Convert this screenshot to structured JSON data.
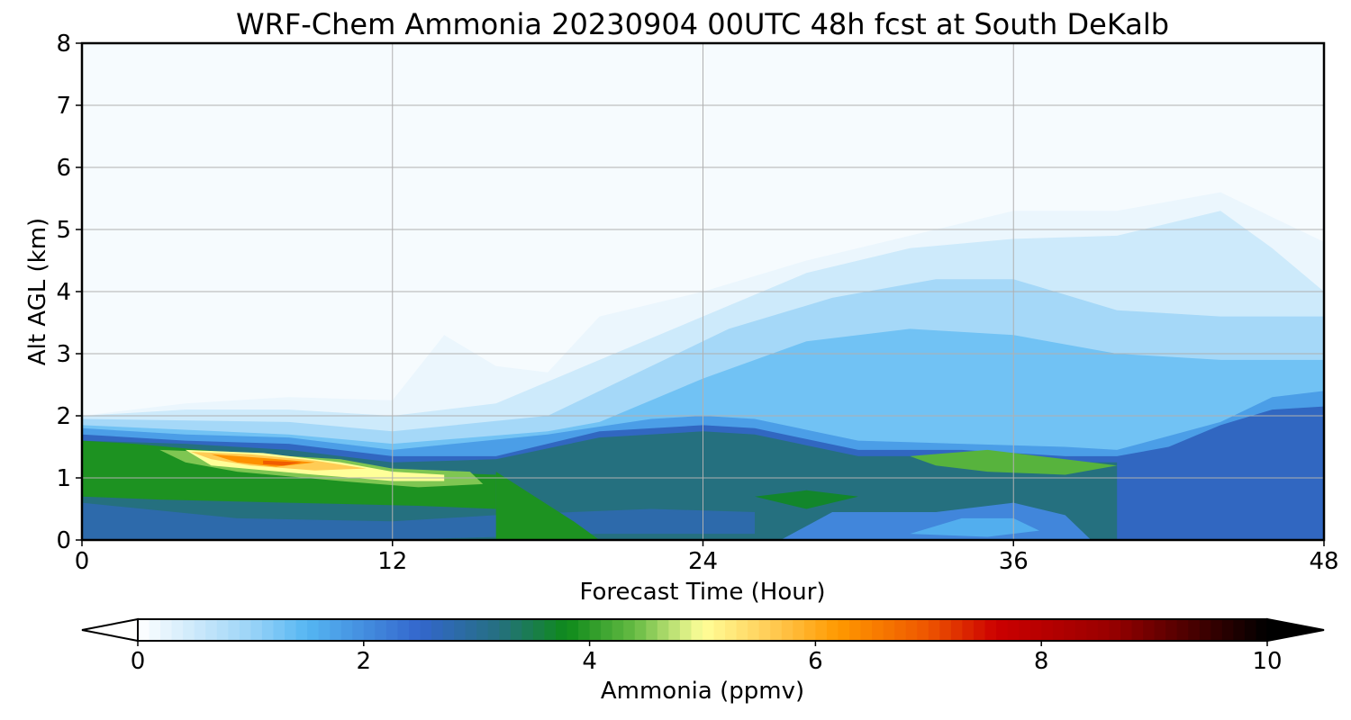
{
  "chart_data": {
    "type": "heatmap",
    "title": "WRF-Chem Ammonia  20230904 00UTC 48h fcst at South DeKalb",
    "xlabel": "Forecast Time (Hour)",
    "ylabel": "Alt AGL (km)",
    "xlim": [
      0,
      48
    ],
    "ylim": [
      0,
      8
    ],
    "x_ticks": [
      "0",
      "12",
      "24",
      "36",
      "48"
    ],
    "y_ticks": [
      "0",
      "1",
      "2",
      "3",
      "4",
      "5",
      "6",
      "7",
      "8"
    ],
    "grid": true,
    "colorbar": {
      "label": "Ammonia  (ppmv)",
      "range": [
        0,
        10
      ],
      "ticks": [
        "0",
        "2",
        "4",
        "6",
        "8",
        "10"
      ],
      "extend": "both",
      "stops": [
        {
          "v": 0,
          "c": "#ffffff"
        },
        {
          "v": 1,
          "c": "#9bd4f7"
        },
        {
          "v": 1.5,
          "c": "#55b6f2"
        },
        {
          "v": 2.5,
          "c": "#3366cc"
        },
        {
          "v": 3.2,
          "c": "#25707f"
        },
        {
          "v": 3.8,
          "c": "#0e8a1a"
        },
        {
          "v": 4.4,
          "c": "#66bb44"
        },
        {
          "v": 5.0,
          "c": "#ffff99"
        },
        {
          "v": 5.6,
          "c": "#ffcc55"
        },
        {
          "v": 6.2,
          "c": "#ff9900"
        },
        {
          "v": 7.0,
          "c": "#ee5500"
        },
        {
          "v": 7.6,
          "c": "#cc0000"
        },
        {
          "v": 8.6,
          "c": "#990000"
        },
        {
          "v": 10,
          "c": "#000000"
        }
      ]
    },
    "contours": [
      {
        "value": 0.2,
        "points": [
          [
            0,
            2.0
          ],
          [
            4,
            2.2
          ],
          [
            8,
            2.3
          ],
          [
            12,
            2.25
          ],
          [
            14,
            3.3
          ],
          [
            16,
            2.8
          ],
          [
            18,
            2.7
          ],
          [
            20,
            3.6
          ],
          [
            24,
            4.0
          ],
          [
            28,
            4.5
          ],
          [
            32,
            4.9
          ],
          [
            36,
            5.3
          ],
          [
            40,
            5.3
          ],
          [
            44,
            5.6
          ],
          [
            46,
            5.2
          ],
          [
            48,
            4.8
          ],
          [
            48,
            0
          ],
          [
            0,
            0
          ]
        ]
      },
      {
        "value": 0.5,
        "points": [
          [
            0,
            2.0
          ],
          [
            4,
            2.1
          ],
          [
            8,
            2.1
          ],
          [
            12,
            2.0
          ],
          [
            16,
            2.2
          ],
          [
            20,
            2.9
          ],
          [
            24,
            3.6
          ],
          [
            28,
            4.3
          ],
          [
            32,
            4.7
          ],
          [
            36,
            4.85
          ],
          [
            40,
            4.9
          ],
          [
            44,
            5.3
          ],
          [
            46,
            4.7
          ],
          [
            48,
            4.0
          ],
          [
            48,
            0
          ],
          [
            0,
            0
          ]
        ]
      },
      {
        "value": 0.9,
        "points": [
          [
            0,
            1.95
          ],
          [
            8,
            1.9
          ],
          [
            12,
            1.75
          ],
          [
            18,
            2.0
          ],
          [
            21,
            2.6
          ],
          [
            25,
            3.4
          ],
          [
            29,
            3.9
          ],
          [
            33,
            4.2
          ],
          [
            36,
            4.2
          ],
          [
            40,
            3.7
          ],
          [
            44,
            3.6
          ],
          [
            48,
            3.6
          ],
          [
            48,
            0
          ],
          [
            0,
            0
          ]
        ]
      },
      {
        "value": 1.3,
        "points": [
          [
            0,
            1.85
          ],
          [
            8,
            1.7
          ],
          [
            12,
            1.55
          ],
          [
            18,
            1.75
          ],
          [
            20,
            1.9
          ],
          [
            24,
            2.6
          ],
          [
            28,
            3.2
          ],
          [
            32,
            3.4
          ],
          [
            36,
            3.3
          ],
          [
            40,
            3.0
          ],
          [
            44,
            2.9
          ],
          [
            48,
            2.9
          ],
          [
            48,
            0
          ],
          [
            0,
            0
          ]
        ]
      },
      {
        "value": 1.8,
        "points": [
          [
            0,
            1.8
          ],
          [
            4,
            1.7
          ],
          [
            8,
            1.65
          ],
          [
            12,
            1.45
          ],
          [
            18,
            1.7
          ],
          [
            22,
            1.95
          ],
          [
            24,
            2.0
          ],
          [
            26,
            1.95
          ],
          [
            30,
            1.6
          ],
          [
            34,
            1.55
          ],
          [
            38,
            1.5
          ],
          [
            40,
            1.45
          ],
          [
            44,
            1.9
          ],
          [
            46,
            2.3
          ],
          [
            48,
            2.4
          ],
          [
            48,
            0
          ],
          [
            0,
            0
          ]
        ]
      },
      {
        "value": 2.6,
        "points": [
          [
            0,
            1.7
          ],
          [
            4,
            1.6
          ],
          [
            8,
            1.55
          ],
          [
            12,
            1.35
          ],
          [
            16,
            1.35
          ],
          [
            20,
            1.75
          ],
          [
            24,
            1.85
          ],
          [
            26,
            1.8
          ],
          [
            30,
            1.45
          ],
          [
            34,
            1.45
          ],
          [
            38,
            1.35
          ],
          [
            40,
            1.35
          ],
          [
            42,
            1.5
          ],
          [
            44,
            1.85
          ],
          [
            46,
            2.1
          ],
          [
            48,
            2.15
          ],
          [
            48,
            0
          ],
          [
            0,
            0
          ]
        ]
      },
      {
        "value": 3.2,
        "points": [
          [
            0,
            1.6
          ],
          [
            4,
            1.55
          ],
          [
            8,
            1.45
          ],
          [
            12,
            1.25
          ],
          [
            16,
            1.3
          ],
          [
            20,
            1.65
          ],
          [
            24,
            1.75
          ],
          [
            26,
            1.7
          ],
          [
            30,
            1.35
          ],
          [
            34,
            1.35
          ],
          [
            38,
            1.25
          ],
          [
            40,
            1.25
          ],
          [
            40,
            0
          ],
          [
            0,
            0
          ]
        ]
      },
      {
        "value": 2.1,
        "points": [
          [
            27,
            0.0
          ],
          [
            29,
            0.45
          ],
          [
            33,
            0.45
          ],
          [
            36,
            0.6
          ],
          [
            38,
            0.4
          ],
          [
            39,
            0.0
          ]
        ]
      },
      {
        "value": 1.6,
        "points": [
          [
            32,
            0.1
          ],
          [
            34,
            0.35
          ],
          [
            36,
            0.35
          ],
          [
            37,
            0.15
          ],
          [
            35,
            0.05
          ]
        ]
      },
      {
        "value": 2.8,
        "points": [
          [
            0,
            0.6
          ],
          [
            6,
            0.35
          ],
          [
            12,
            0.3
          ],
          [
            16,
            0.4
          ],
          [
            22,
            0.5
          ],
          [
            26,
            0.45
          ],
          [
            26,
            0.1
          ],
          [
            20,
            0.1
          ],
          [
            12,
            0.0
          ],
          [
            0,
            0.0
          ]
        ]
      },
      {
        "value": 3.9,
        "points": [
          [
            0,
            1.6
          ],
          [
            2,
            1.55
          ],
          [
            6,
            1.4
          ],
          [
            10,
            1.25
          ],
          [
            13,
            1.1
          ],
          [
            16,
            1.05
          ],
          [
            16,
            0.5
          ],
          [
            13,
            0.55
          ],
          [
            8,
            0.6
          ],
          [
            3,
            0.65
          ],
          [
            0,
            0.7
          ]
        ]
      },
      {
        "value": 3.9,
        "points": [
          [
            16,
            0.0
          ],
          [
            16,
            1.1
          ],
          [
            19,
            0.3
          ],
          [
            20,
            0.0
          ]
        ]
      },
      {
        "value": 3.7,
        "points": [
          [
            26,
            0.7
          ],
          [
            28,
            0.8
          ],
          [
            30,
            0.7
          ],
          [
            28,
            0.5
          ]
        ]
      },
      {
        "value": 4.3,
        "points": [
          [
            32,
            1.35
          ],
          [
            35,
            1.45
          ],
          [
            38,
            1.3
          ],
          [
            40,
            1.2
          ],
          [
            38,
            1.05
          ],
          [
            35,
            1.1
          ],
          [
            33,
            1.2
          ]
        ]
      },
      {
        "value": 4.5,
        "points": [
          [
            3,
            1.45
          ],
          [
            6,
            1.4
          ],
          [
            10,
            1.3
          ],
          [
            12,
            1.15
          ],
          [
            15,
            1.1
          ],
          [
            15.5,
            0.9
          ],
          [
            13,
            0.85
          ],
          [
            10,
            0.95
          ],
          [
            6,
            1.1
          ],
          [
            4,
            1.25
          ]
        ]
      },
      {
        "value": 5.0,
        "points": [
          [
            4,
            1.45
          ],
          [
            7,
            1.4
          ],
          [
            10,
            1.25
          ],
          [
            12,
            1.1
          ],
          [
            14,
            1.05
          ],
          [
            14,
            0.95
          ],
          [
            12,
            0.95
          ],
          [
            9,
            1.05
          ],
          [
            5,
            1.2
          ]
        ]
      },
      {
        "value": 5.6,
        "points": [
          [
            4.2,
            1.42
          ],
          [
            6.5,
            1.38
          ],
          [
            9,
            1.28
          ],
          [
            11,
            1.15
          ],
          [
            9,
            1.12
          ],
          [
            6.5,
            1.2
          ],
          [
            5,
            1.3
          ]
        ]
      },
      {
        "value": 6.3,
        "points": [
          [
            5,
            1.38
          ],
          [
            7,
            1.32
          ],
          [
            9,
            1.25
          ],
          [
            7.5,
            1.18
          ],
          [
            6,
            1.25
          ]
        ]
      },
      {
        "value": 6.9,
        "points": [
          [
            7,
            1.28
          ],
          [
            8.5,
            1.25
          ],
          [
            7.8,
            1.2
          ],
          [
            7,
            1.22
          ]
        ]
      }
    ]
  }
}
